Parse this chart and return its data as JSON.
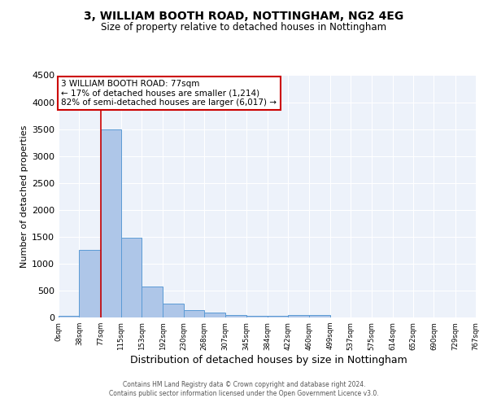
{
  "title1": "3, WILLIAM BOOTH ROAD, NOTTINGHAM, NG2 4EG",
  "title2": "Size of property relative to detached houses in Nottingham",
  "xlabel": "Distribution of detached houses by size in Nottingham",
  "ylabel": "Number of detached properties",
  "footer1": "Contains HM Land Registry data © Crown copyright and database right 2024.",
  "footer2": "Contains public sector information licensed under the Open Government Licence v3.0.",
  "annotation_line1": "3 WILLIAM BOOTH ROAD: 77sqm",
  "annotation_line2": "← 17% of detached houses are smaller (1,214)",
  "annotation_line3": "82% of semi-detached houses are larger (6,017) →",
  "bin_edges": [
    0,
    38,
    77,
    115,
    153,
    192,
    230,
    268,
    307,
    345,
    384,
    422,
    460,
    499,
    537,
    575,
    614,
    652,
    690,
    729,
    767
  ],
  "bar_heights": [
    30,
    1260,
    3500,
    1480,
    580,
    250,
    140,
    90,
    50,
    30,
    30,
    50,
    50,
    0,
    0,
    0,
    0,
    0,
    0,
    0
  ],
  "bar_color": "#aec6e8",
  "bar_edgecolor": "#5b9bd5",
  "redline_x": 77,
  "ylim": [
    0,
    4500
  ],
  "yticks": [
    0,
    500,
    1000,
    1500,
    2000,
    2500,
    3000,
    3500,
    4000,
    4500
  ],
  "background_color": "#edf2fa",
  "grid_color": "#ffffff",
  "annotation_box_color": "#ffffff",
  "annotation_border_color": "#cc0000",
  "redline_color": "#cc0000"
}
